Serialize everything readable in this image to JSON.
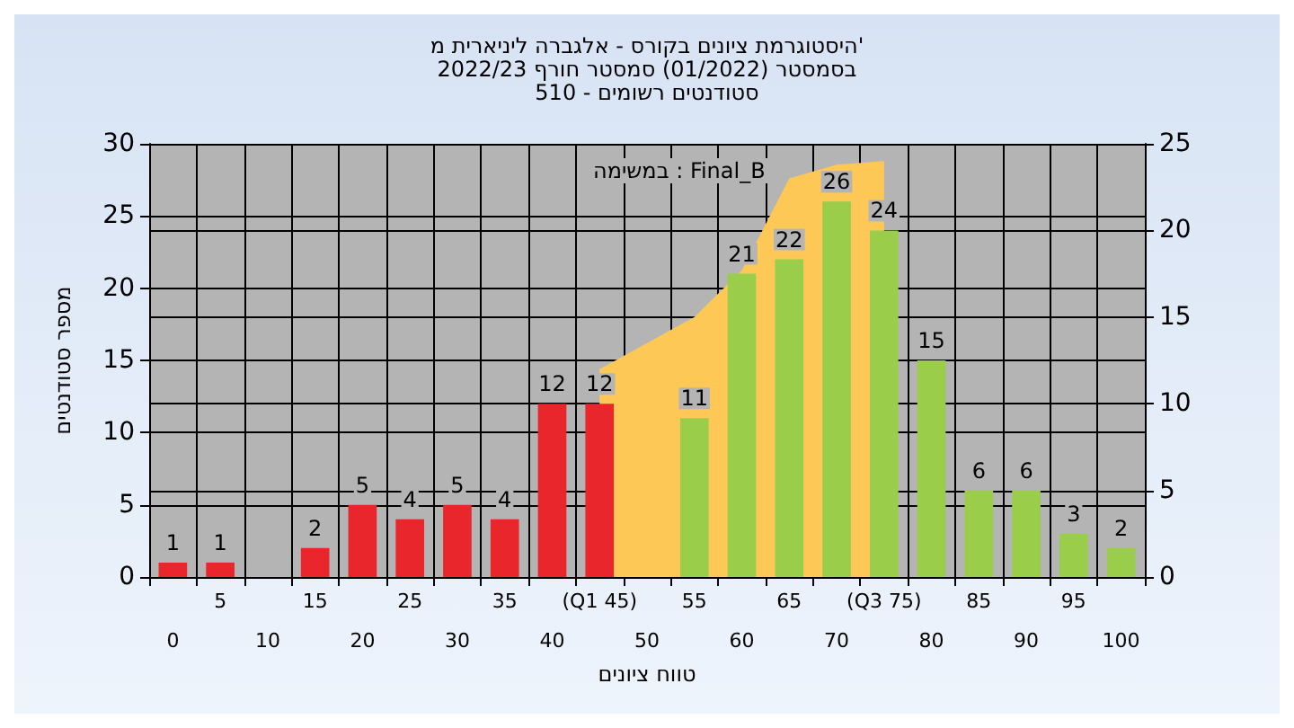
{
  "chart_data": {
    "type": "bar",
    "title": "היסטוגרמת ציונים בקורס - אלגברה ליניארית מ'",
    "subtitle": "בסמסטר (01/2022) סמסטר חורף 2022/23\nסטודנטים רשומים - 510",
    "xlabel": "טווח ציונים",
    "ylabel": "מספר סטודנטים",
    "annotations": [
      "במשימה : Final_B"
    ],
    "categories": [
      "0",
      "5",
      "10",
      "15",
      "20",
      "25",
      "30",
      "35",
      "40",
      "(Q1 45)",
      "50",
      "55",
      "60",
      "65",
      "70",
      "(Q3 75)",
      "80",
      "85",
      "90",
      "95",
      "100"
    ],
    "series": [
      {
        "type": "area",
        "axis": "y2",
        "color": "#fec857",
        "values": [
          null,
          null,
          null,
          null,
          null,
          null,
          null,
          null,
          null,
          12,
          13.5,
          15,
          17.7,
          23,
          23.8,
          24,
          null,
          null,
          null,
          null,
          null
        ]
      },
      {
        "values": [
          1,
          1,
          null,
          2,
          5,
          4,
          5,
          4,
          12,
          12,
          null,
          11,
          21,
          22,
          26,
          24,
          15,
          6,
          6,
          3,
          2
        ],
        "value_labels": [
          "1",
          "1",
          null,
          "2",
          "5",
          "4",
          "5",
          "4",
          "12",
          "12",
          null,
          "11",
          "21",
          "22",
          "26",
          "24",
          "15",
          "6",
          "6",
          "3",
          "2"
        ],
        "colors": [
          "#e8262b",
          "#e8262b",
          "#e8262b",
          "#e8262b",
          "#e8262b",
          "#e8262b",
          "#e8262b",
          "#e8262b",
          "#e8262b",
          "#e8262b",
          "#e8262b",
          "#9acd4a",
          "#9acd4a",
          "#9acd4a",
          "#9acd4a",
          "#9acd4a",
          "#9acd4a",
          "#9acd4a",
          "#9acd4a",
          "#9acd4a",
          "#9acd4a"
        ]
      }
    ],
    "ylim": [
      0,
      30
    ],
    "yticks": [
      0,
      5,
      10,
      15,
      20,
      25,
      30
    ],
    "y2lim": [
      0,
      25
    ],
    "y2ticks": [
      0,
      5,
      10,
      15,
      20,
      25
    ],
    "grid": true
  }
}
